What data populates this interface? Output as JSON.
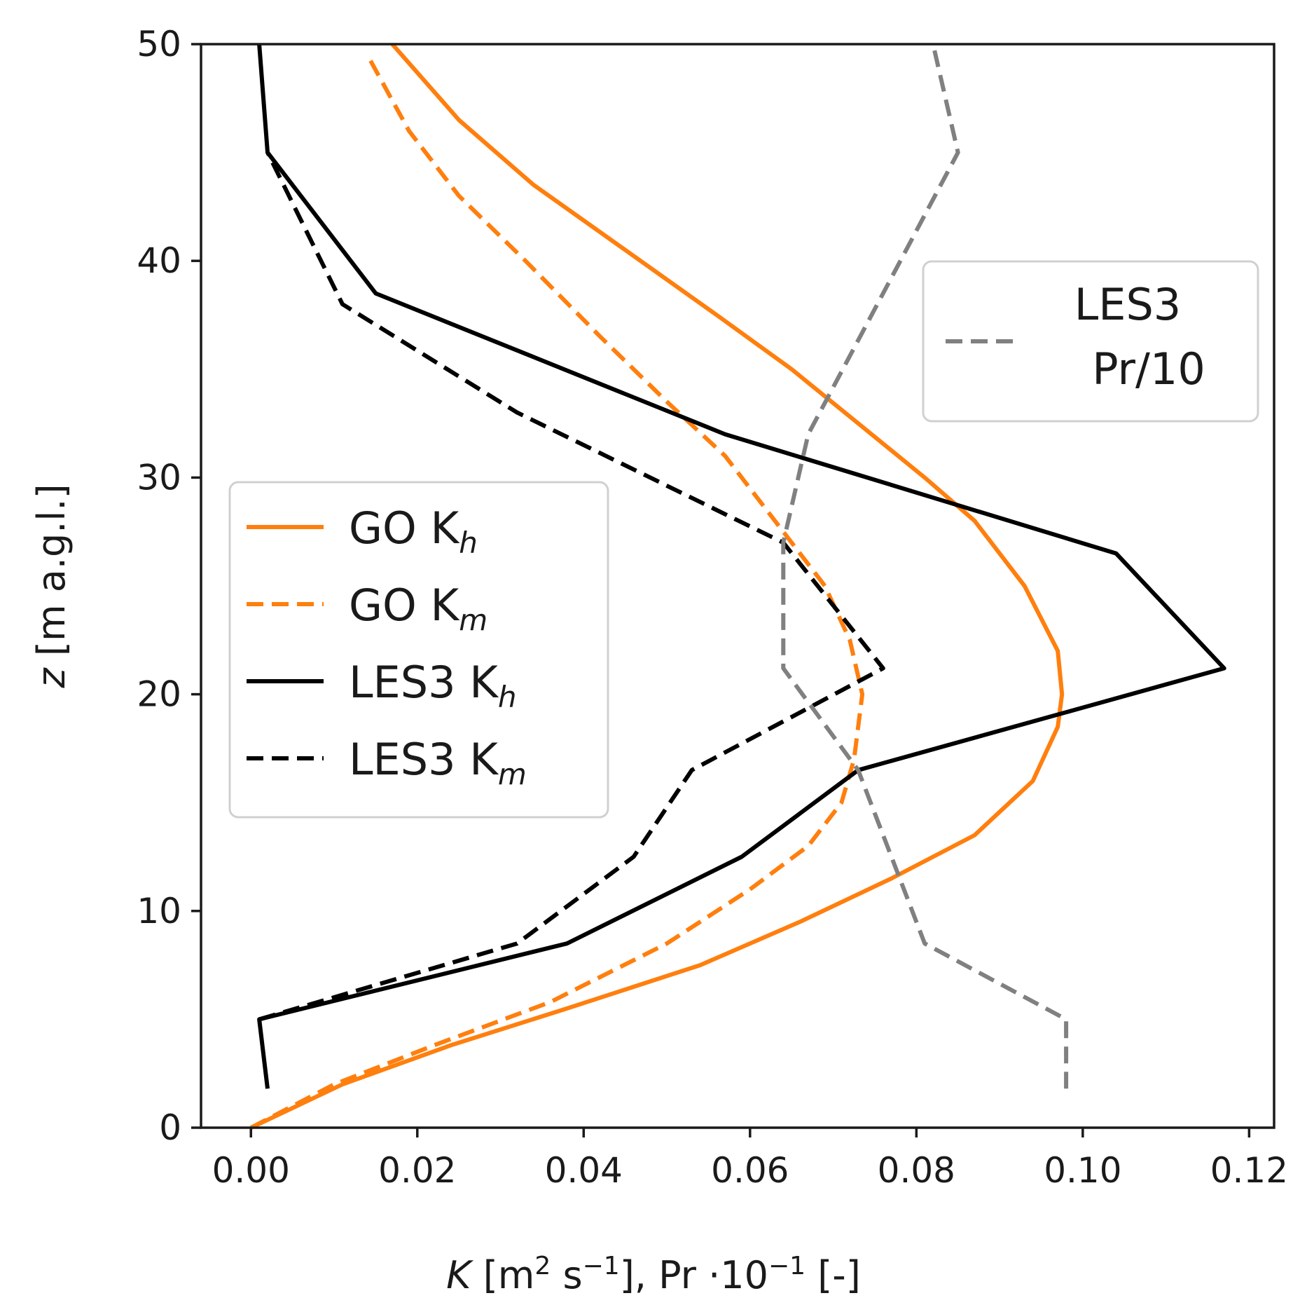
{
  "chart_data": {
    "type": "line",
    "title": "",
    "xlabel": {
      "italic": "K",
      "units_open": " [m",
      "units_sup1": "2",
      "units_mid": " s",
      "units_sup2": "−1",
      "units_close": "],   Pr ·10",
      "units_sup3": "−1",
      "units_end": " [-]"
    },
    "ylabel": {
      "italic": "z",
      "rest": " [m a.g.l.]"
    },
    "xlim": [
      -0.006,
      0.123
    ],
    "ylim": [
      0,
      50
    ],
    "xticks": [
      0.0,
      0.02,
      0.04,
      0.06,
      0.08,
      0.1,
      0.12
    ],
    "xtick_labels": [
      "0.00",
      "0.02",
      "0.04",
      "0.06",
      "0.08",
      "0.10",
      "0.12"
    ],
    "yticks": [
      0,
      10,
      20,
      30,
      40,
      50
    ],
    "ytick_labels": [
      "0",
      "10",
      "20",
      "30",
      "40",
      "50"
    ],
    "grid": false,
    "series": [
      {
        "name": "GO Kh",
        "legend": {
          "base": "GO K",
          "sub": "h"
        },
        "color": "#ff7f0e",
        "dash": "solid",
        "points": [
          [
            0.0,
            0
          ],
          [
            0.011,
            2
          ],
          [
            0.024,
            3.8
          ],
          [
            0.038,
            5.5
          ],
          [
            0.054,
            7.5
          ],
          [
            0.066,
            9.5
          ],
          [
            0.077,
            11.5
          ],
          [
            0.087,
            13.5
          ],
          [
            0.094,
            16
          ],
          [
            0.097,
            18.5
          ],
          [
            0.0975,
            20
          ],
          [
            0.097,
            22
          ],
          [
            0.093,
            25
          ],
          [
            0.087,
            28
          ],
          [
            0.081,
            30
          ],
          [
            0.073,
            32.5
          ],
          [
            0.065,
            35
          ],
          [
            0.056,
            37.5
          ],
          [
            0.045,
            40.5
          ],
          [
            0.034,
            43.5
          ],
          [
            0.025,
            46.5
          ],
          [
            0.017,
            50
          ]
        ]
      },
      {
        "name": "GO Km",
        "legend": {
          "base": "GO K",
          "sub": "m"
        },
        "color": "#ff7f0e",
        "dash": "dashed",
        "points": [
          [
            0.0,
            0
          ],
          [
            0.01,
            2
          ],
          [
            0.022,
            3.8
          ],
          [
            0.036,
            5.8
          ],
          [
            0.05,
            8.5
          ],
          [
            0.06,
            11
          ],
          [
            0.067,
            13
          ],
          [
            0.071,
            15
          ],
          [
            0.0725,
            17
          ],
          [
            0.0735,
            20
          ],
          [
            0.072,
            22.5
          ],
          [
            0.069,
            25
          ],
          [
            0.063,
            28
          ],
          [
            0.057,
            31
          ],
          [
            0.05,
            33.5
          ],
          [
            0.042,
            36.5
          ],
          [
            0.033,
            40
          ],
          [
            0.025,
            43
          ],
          [
            0.019,
            46
          ],
          [
            0.014,
            49.5
          ]
        ]
      },
      {
        "name": "LES3 Kh",
        "legend": {
          "base": "LES3 K",
          "sub": "h"
        },
        "color": "#000000",
        "dash": "solid",
        "points": [
          [
            0.002,
            1.8
          ],
          [
            0.001,
            5
          ],
          [
            0.038,
            8.5
          ],
          [
            0.059,
            12.5
          ],
          [
            0.073,
            16.5
          ],
          [
            0.117,
            21.2
          ],
          [
            0.104,
            26.5
          ],
          [
            0.057,
            32
          ],
          [
            0.015,
            38.5
          ],
          [
            0.002,
            45
          ],
          [
            0.001,
            50
          ]
        ]
      },
      {
        "name": "LES3 Km",
        "legend": {
          "base": "LES3 K",
          "sub": "m"
        },
        "color": "#000000",
        "dash": "dashed",
        "points": [
          [
            0.001,
            5
          ],
          [
            0.032,
            8.5
          ],
          [
            0.046,
            12.5
          ],
          [
            0.053,
            16.5
          ],
          [
            0.076,
            21.2
          ],
          [
            0.064,
            27
          ],
          [
            0.032,
            33
          ],
          [
            0.011,
            38
          ],
          [
            0.002,
            45
          ]
        ]
      },
      {
        "name": "LES3 Pr/10",
        "legend": {
          "base": "LES3",
          "line2": "Pr/10"
        },
        "color": "#808080",
        "dash": "dashed",
        "points": [
          [
            0.098,
            1.8
          ],
          [
            0.098,
            5
          ],
          [
            0.081,
            8.5
          ],
          [
            0.077,
            12.5
          ],
          [
            0.073,
            16.5
          ],
          [
            0.064,
            21.2
          ],
          [
            0.064,
            27
          ],
          [
            0.067,
            32
          ],
          [
            0.085,
            45
          ],
          [
            0.082,
            50
          ]
        ]
      }
    ],
    "legends": [
      {
        "placement": "center-left",
        "entries": [
          "GO Kh",
          "GO Km",
          "LES3 Kh",
          "LES3 Km"
        ]
      },
      {
        "placement": "upper-right",
        "entries": [
          "LES3 Pr/10"
        ]
      }
    ]
  }
}
